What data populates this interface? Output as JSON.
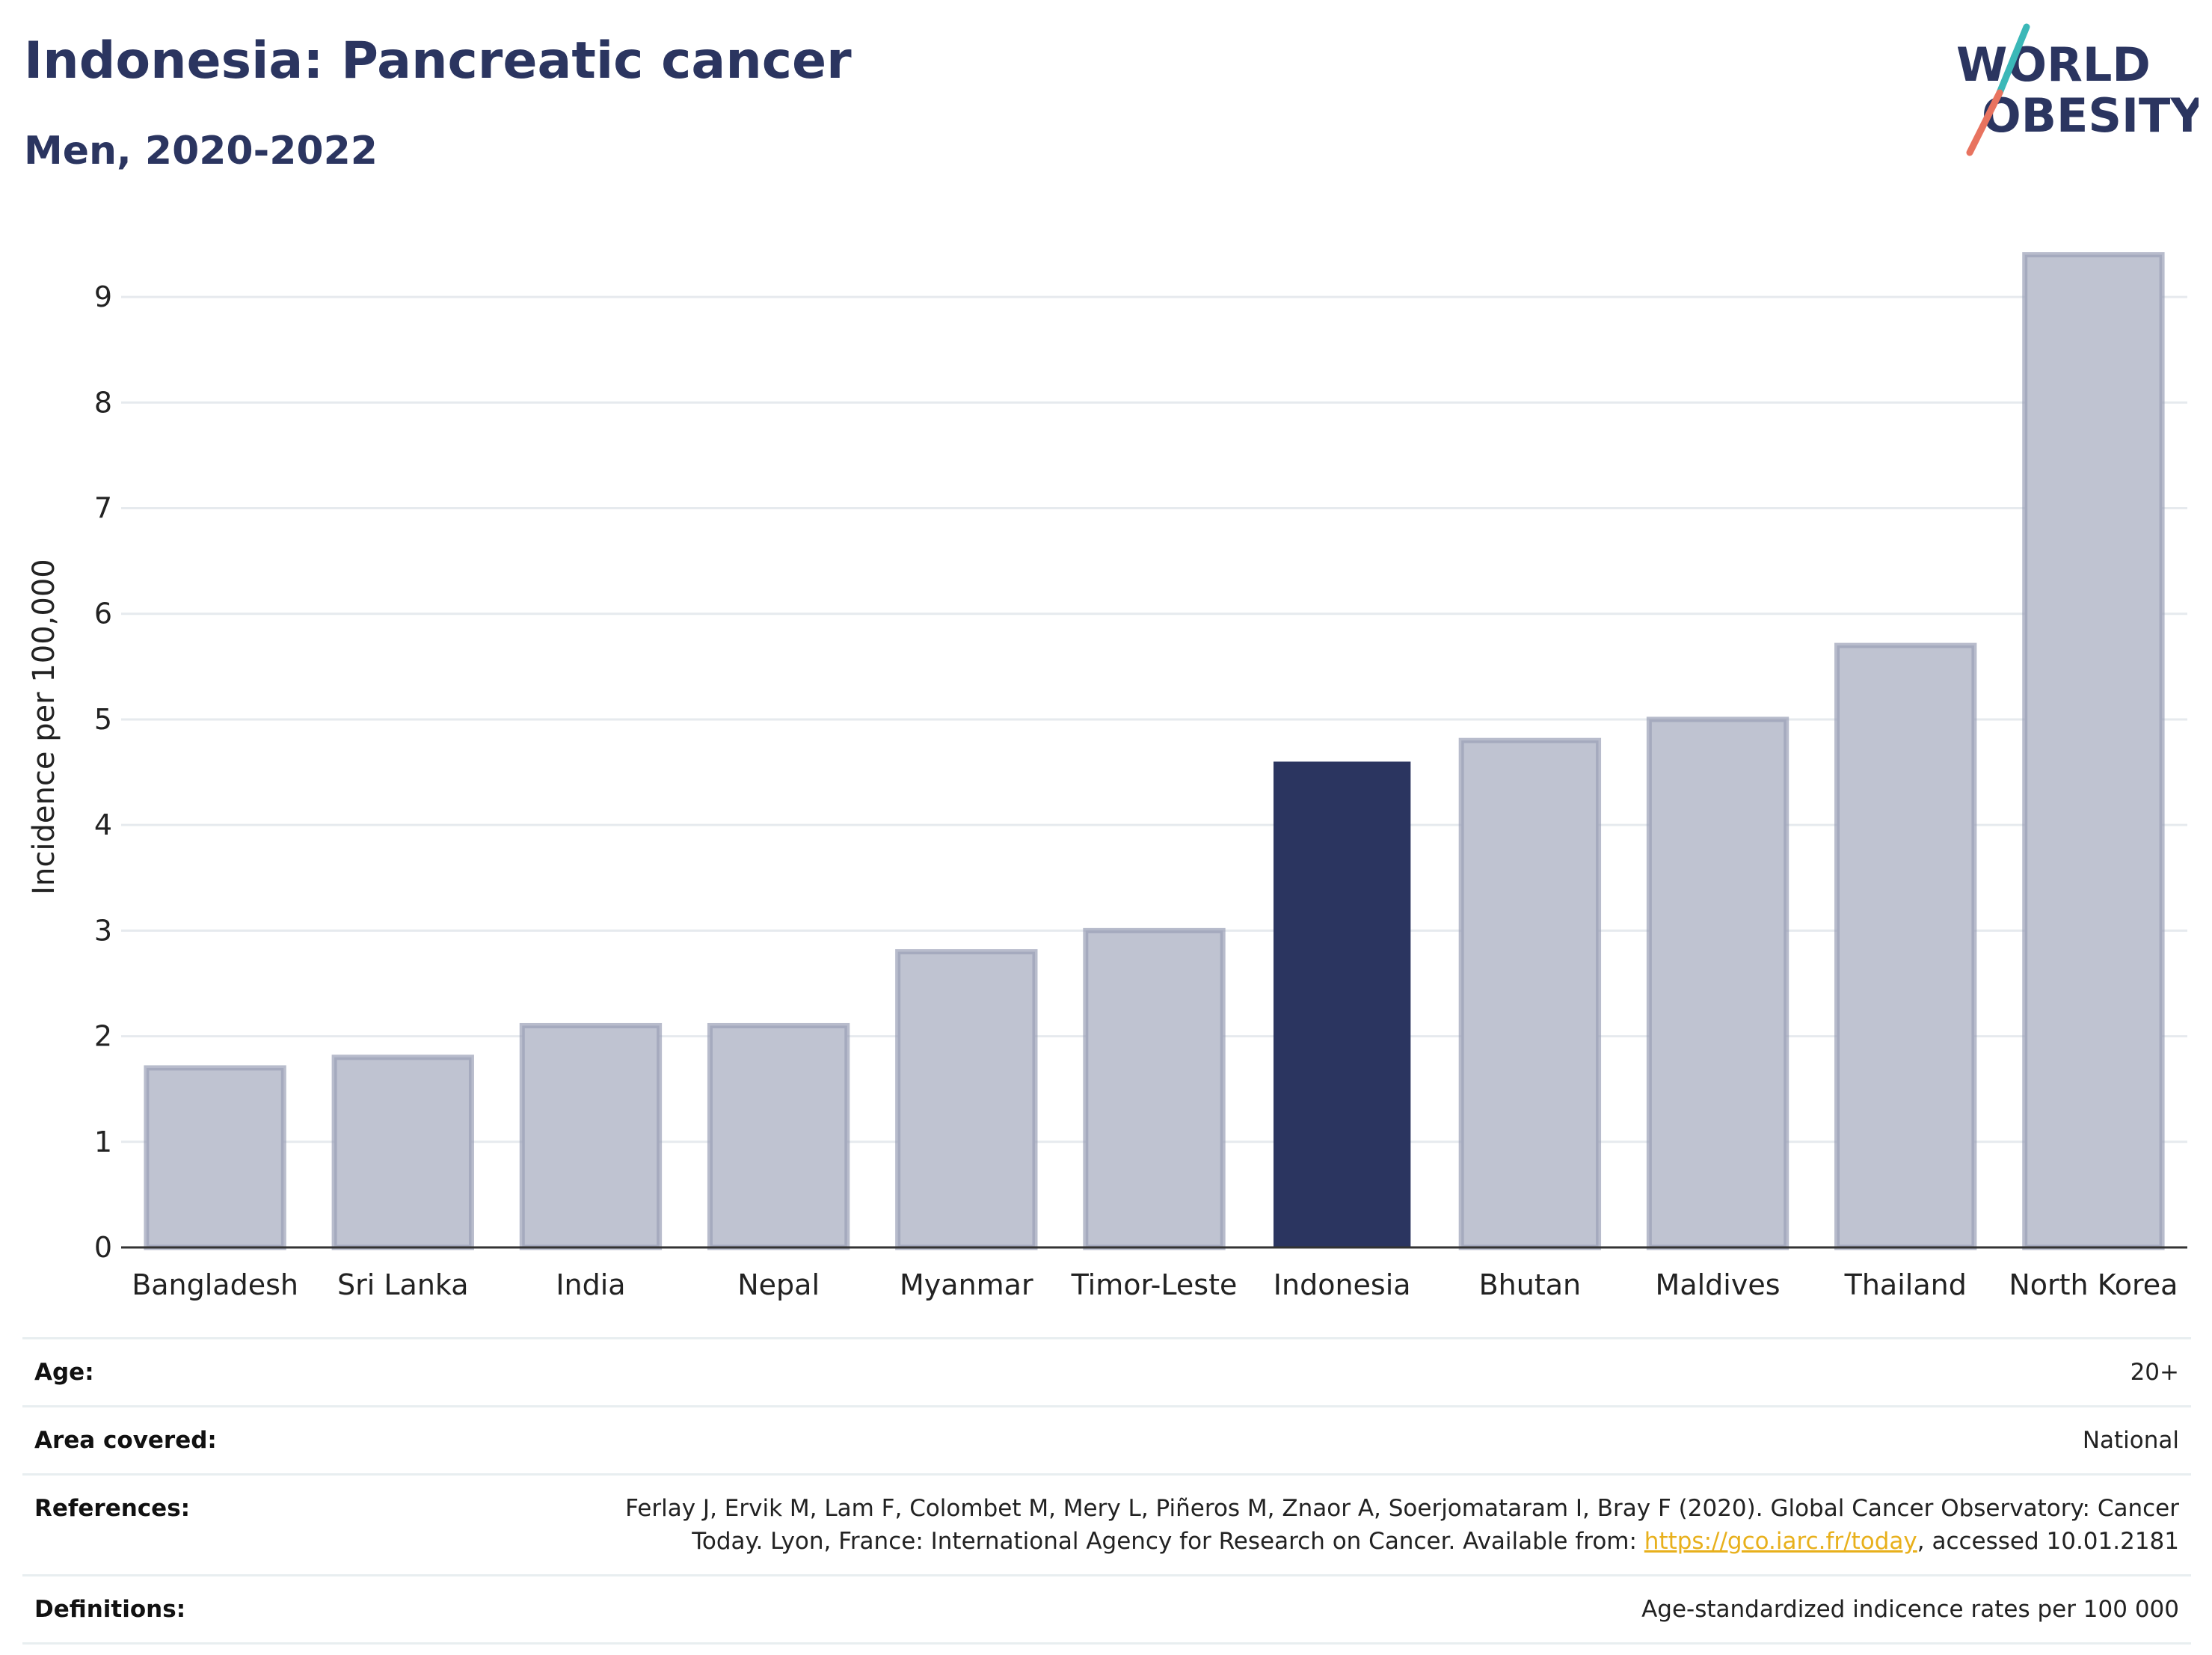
{
  "header": {
    "title": "Indonesia: Pancreatic cancer",
    "subtitle": "Men, 2020-2022",
    "logo_line1": "WORLD",
    "logo_line2": "OBESITY"
  },
  "colors": {
    "highlight": "#2b3560",
    "other": "#bfc3d1",
    "other_border": "#9a9fb6",
    "title": "#2b3560",
    "link": "#e8b01c",
    "logo_slash_teal": "#3bb8b8",
    "logo_slash_coral": "#e8735f"
  },
  "chart_data": {
    "type": "bar",
    "categories": [
      "Bangladesh",
      "Sri Lanka",
      "India",
      "Nepal",
      "Myanmar",
      "Timor-Leste",
      "Indonesia",
      "Bhutan",
      "Maldives",
      "Thailand",
      "North Korea"
    ],
    "values": [
      1.7,
      1.8,
      2.1,
      2.1,
      2.8,
      3.0,
      4.6,
      4.8,
      5.0,
      5.7,
      9.4
    ],
    "highlight": "Indonesia",
    "ylabel": "Incidence per 100,000",
    "xlabel": "",
    "ylim": [
      0,
      9.9
    ],
    "yticks": [
      0,
      1,
      2,
      3,
      4,
      5,
      6,
      7,
      8,
      9
    ],
    "grid": true
  },
  "info": {
    "age_label": "Age:",
    "age_value": "20+",
    "area_label": "Area covered:",
    "area_value": "National",
    "references_label": "References:",
    "references_text_1": "Ferlay J, Ervik M, Lam F, Colombet M, Mery L, Piñeros M, Znaor A, Soerjomataram I, Bray F (2020). Global Cancer Observatory: Cancer Today. Lyon, France: International Agency for Research on Cancer. Available from: ",
    "references_link": "https://gco.iarc.fr/today",
    "references_text_2": ", accessed 10.01.2181",
    "definitions_label": "Definitions:",
    "definitions_value": "Age-standardized indicence rates per 100 000"
  }
}
